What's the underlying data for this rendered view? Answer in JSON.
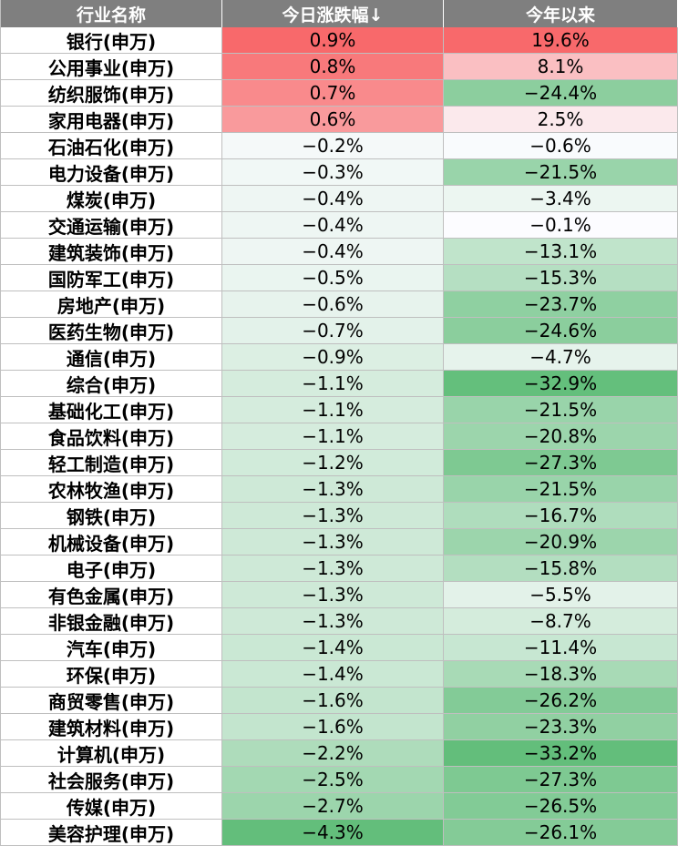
{
  "chart_data": {
    "type": "table",
    "columns": [
      "行业名称",
      "今日涨跌幅↓",
      "今年以来"
    ],
    "rows": [
      {
        "name": "银行(申万)",
        "day": "0.9%",
        "ytd": "19.6%",
        "day_v": 0.9,
        "ytd_v": 19.6
      },
      {
        "name": "公用事业(申万)",
        "day": "0.8%",
        "ytd": "8.1%",
        "day_v": 0.8,
        "ytd_v": 8.1
      },
      {
        "name": "纺织服饰(申万)",
        "day": "0.7%",
        "ytd": "−24.4%",
        "day_v": 0.7,
        "ytd_v": -24.4
      },
      {
        "name": "家用电器(申万)",
        "day": "0.6%",
        "ytd": "2.5%",
        "day_v": 0.6,
        "ytd_v": 2.5
      },
      {
        "name": "石油石化(申万)",
        "day": "−0.2%",
        "ytd": "−0.6%",
        "day_v": -0.2,
        "ytd_v": -0.6
      },
      {
        "name": "电力设备(申万)",
        "day": "−0.3%",
        "ytd": "−21.5%",
        "day_v": -0.3,
        "ytd_v": -21.5
      },
      {
        "name": "煤炭(申万)",
        "day": "−0.4%",
        "ytd": "−3.4%",
        "day_v": -0.4,
        "ytd_v": -3.4
      },
      {
        "name": "交通运输(申万)",
        "day": "−0.4%",
        "ytd": "−0.1%",
        "day_v": -0.4,
        "ytd_v": -0.1
      },
      {
        "name": "建筑装饰(申万)",
        "day": "−0.4%",
        "ytd": "−13.1%",
        "day_v": -0.4,
        "ytd_v": -13.1
      },
      {
        "name": "国防军工(申万)",
        "day": "−0.5%",
        "ytd": "−15.3%",
        "day_v": -0.5,
        "ytd_v": -15.3
      },
      {
        "name": "房地产(申万)",
        "day": "−0.6%",
        "ytd": "−23.7%",
        "day_v": -0.6,
        "ytd_v": -23.7
      },
      {
        "name": "医药生物(申万)",
        "day": "−0.7%",
        "ytd": "−24.6%",
        "day_v": -0.7,
        "ytd_v": -24.6
      },
      {
        "name": "通信(申万)",
        "day": "−0.9%",
        "ytd": "−4.7%",
        "day_v": -0.9,
        "ytd_v": -4.7
      },
      {
        "name": "综合(申万)",
        "day": "−1.1%",
        "ytd": "−32.9%",
        "day_v": -1.1,
        "ytd_v": -32.9
      },
      {
        "name": "基础化工(申万)",
        "day": "−1.1%",
        "ytd": "−21.5%",
        "day_v": -1.1,
        "ytd_v": -21.5
      },
      {
        "name": "食品饮料(申万)",
        "day": "−1.1%",
        "ytd": "−20.8%",
        "day_v": -1.1,
        "ytd_v": -20.8
      },
      {
        "name": "轻工制造(申万)",
        "day": "−1.2%",
        "ytd": "−27.3%",
        "day_v": -1.2,
        "ytd_v": -27.3
      },
      {
        "name": "农林牧渔(申万)",
        "day": "−1.3%",
        "ytd": "−21.5%",
        "day_v": -1.3,
        "ytd_v": -21.5
      },
      {
        "name": "钢铁(申万)",
        "day": "−1.3%",
        "ytd": "−16.7%",
        "day_v": -1.3,
        "ytd_v": -16.7
      },
      {
        "name": "机械设备(申万)",
        "day": "−1.3%",
        "ytd": "−20.9%",
        "day_v": -1.3,
        "ytd_v": -20.9
      },
      {
        "name": "电子(申万)",
        "day": "−1.3%",
        "ytd": "−15.8%",
        "day_v": -1.3,
        "ytd_v": -15.8
      },
      {
        "name": "有色金属(申万)",
        "day": "−1.3%",
        "ytd": "−5.5%",
        "day_v": -1.3,
        "ytd_v": -5.5
      },
      {
        "name": "非银金融(申万)",
        "day": "−1.3%",
        "ytd": "−8.7%",
        "day_v": -1.3,
        "ytd_v": -8.7
      },
      {
        "name": "汽车(申万)",
        "day": "−1.4%",
        "ytd": "−11.4%",
        "day_v": -1.4,
        "ytd_v": -11.4
      },
      {
        "name": "环保(申万)",
        "day": "−1.4%",
        "ytd": "−18.3%",
        "day_v": -1.4,
        "ytd_v": -18.3
      },
      {
        "name": "商贸零售(申万)",
        "day": "−1.6%",
        "ytd": "−26.2%",
        "day_v": -1.6,
        "ytd_v": -26.2
      },
      {
        "name": "建筑材料(申万)",
        "day": "−1.6%",
        "ytd": "−23.3%",
        "day_v": -1.6,
        "ytd_v": -23.3
      },
      {
        "name": "计算机(申万)",
        "day": "−2.2%",
        "ytd": "−33.2%",
        "day_v": -2.2,
        "ytd_v": -33.2
      },
      {
        "name": "社会服务(申万)",
        "day": "−2.5%",
        "ytd": "−27.3%",
        "day_v": -2.5,
        "ytd_v": -27.3
      },
      {
        "name": "传媒(申万)",
        "day": "−2.7%",
        "ytd": "−26.5%",
        "day_v": -2.7,
        "ytd_v": -26.5
      },
      {
        "name": "美容护理(申万)",
        "day": "−4.3%",
        "ytd": "−26.1%",
        "day_v": -4.3,
        "ytd_v": -26.1
      }
    ],
    "colors": {
      "header_bg": "#7f7f7f",
      "header_text": "#ffffff",
      "positive_max": "#f8696b",
      "negative_max": "#63be7b",
      "neutral": "#fcfcff",
      "grid": "#bfbfbf"
    }
  }
}
